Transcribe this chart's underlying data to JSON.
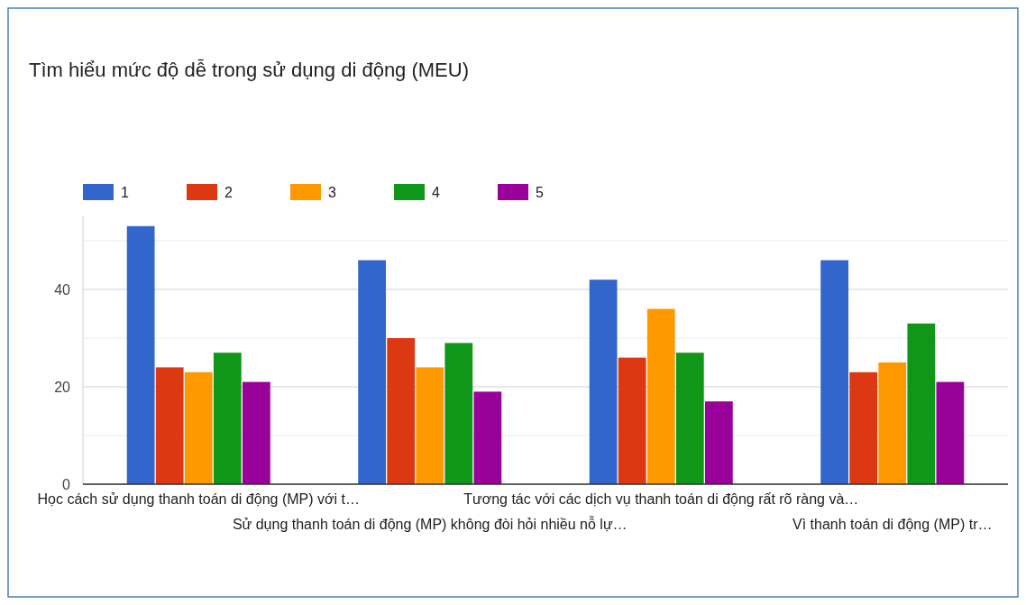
{
  "chart_data": {
    "type": "bar",
    "title": "Tìm hiểu mức độ dễ trong sử dụng di động (MEU)",
    "categories": [
      "Học cách sử dụng thanh toán di động (MP) với t…",
      "Sử dụng thanh toán di động (MP) không đòi hỏi nhiều nỗ lự…",
      "Tương tác với các dịch vụ thanh toán di động rất rõ ràng và…",
      "Vì thanh toán di động (MP) tr…"
    ],
    "series": [
      {
        "name": "1",
        "color": "#3366cc",
        "values": [
          53,
          46,
          42,
          46
        ]
      },
      {
        "name": "2",
        "color": "#dc3912",
        "values": [
          24,
          30,
          26,
          23
        ]
      },
      {
        "name": "3",
        "color": "#ff9900",
        "values": [
          23,
          24,
          36,
          25
        ]
      },
      {
        "name": "4",
        "color": "#109618",
        "values": [
          27,
          29,
          27,
          33
        ]
      },
      {
        "name": "5",
        "color": "#990099",
        "values": [
          21,
          19,
          17,
          21
        ]
      }
    ],
    "ylim": [
      0,
      55
    ],
    "yticks": [
      0,
      {
        "value": 10,
        "label": null
      },
      20,
      {
        "value": 30,
        "label": null
      },
      40,
      {
        "value": 50,
        "label": null
      }
    ],
    "grid": "y",
    "legend": "top left"
  }
}
